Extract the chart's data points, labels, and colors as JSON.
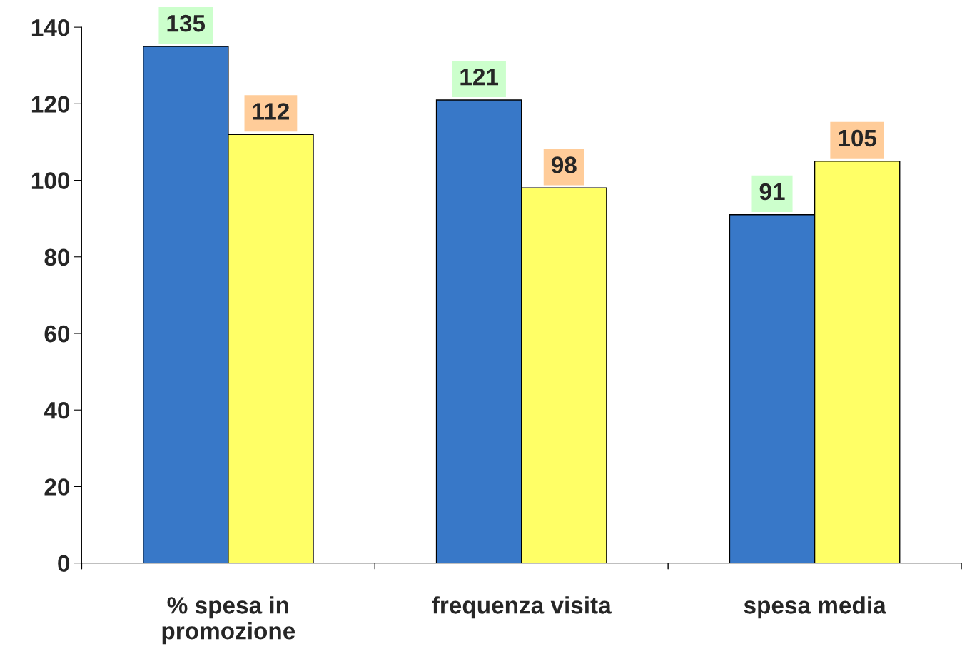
{
  "chart_data": {
    "type": "bar",
    "categories": [
      "% spesa in\npromozione",
      "frequenza visita",
      "spesa media"
    ],
    "series": [
      {
        "color": "#3878c8",
        "values": [
          135,
          121,
          91
        ]
      },
      {
        "color": "#ffff66",
        "values": [
          112,
          98,
          105
        ]
      }
    ],
    "ylim": [
      0,
      140
    ],
    "yticks": [
      0,
      20,
      40,
      60,
      80,
      100,
      120,
      140
    ],
    "data_labels": true,
    "grid": false,
    "legend": false
  }
}
